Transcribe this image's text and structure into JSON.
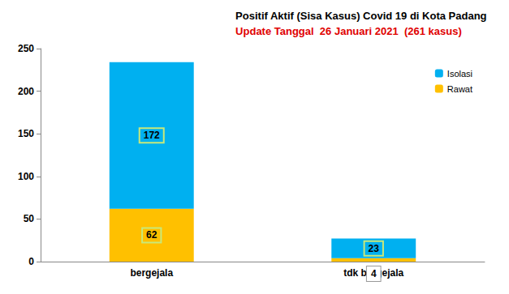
{
  "chart_data": {
    "type": "bar",
    "title": "Positif Aktif (Sisa Kasus) Covid 19 di Kota Padang",
    "subtitle": "Update Tanggal  26 Januari 2021  (261 kasus)",
    "categories": [
      "bergejala",
      "tdk bergejala"
    ],
    "series": [
      {
        "name": "Rawat",
        "color": "#ffc000",
        "values": [
          62,
          4
        ]
      },
      {
        "name": "Isolasi",
        "color": "#00b0f0",
        "values": [
          172,
          23
        ]
      }
    ],
    "stacked": true,
    "data_labels": true,
    "grid": false,
    "legend": "top-right",
    "ylim": [
      0,
      250
    ],
    "yticks": [
      0,
      50,
      100,
      150,
      200,
      250
    ]
  }
}
